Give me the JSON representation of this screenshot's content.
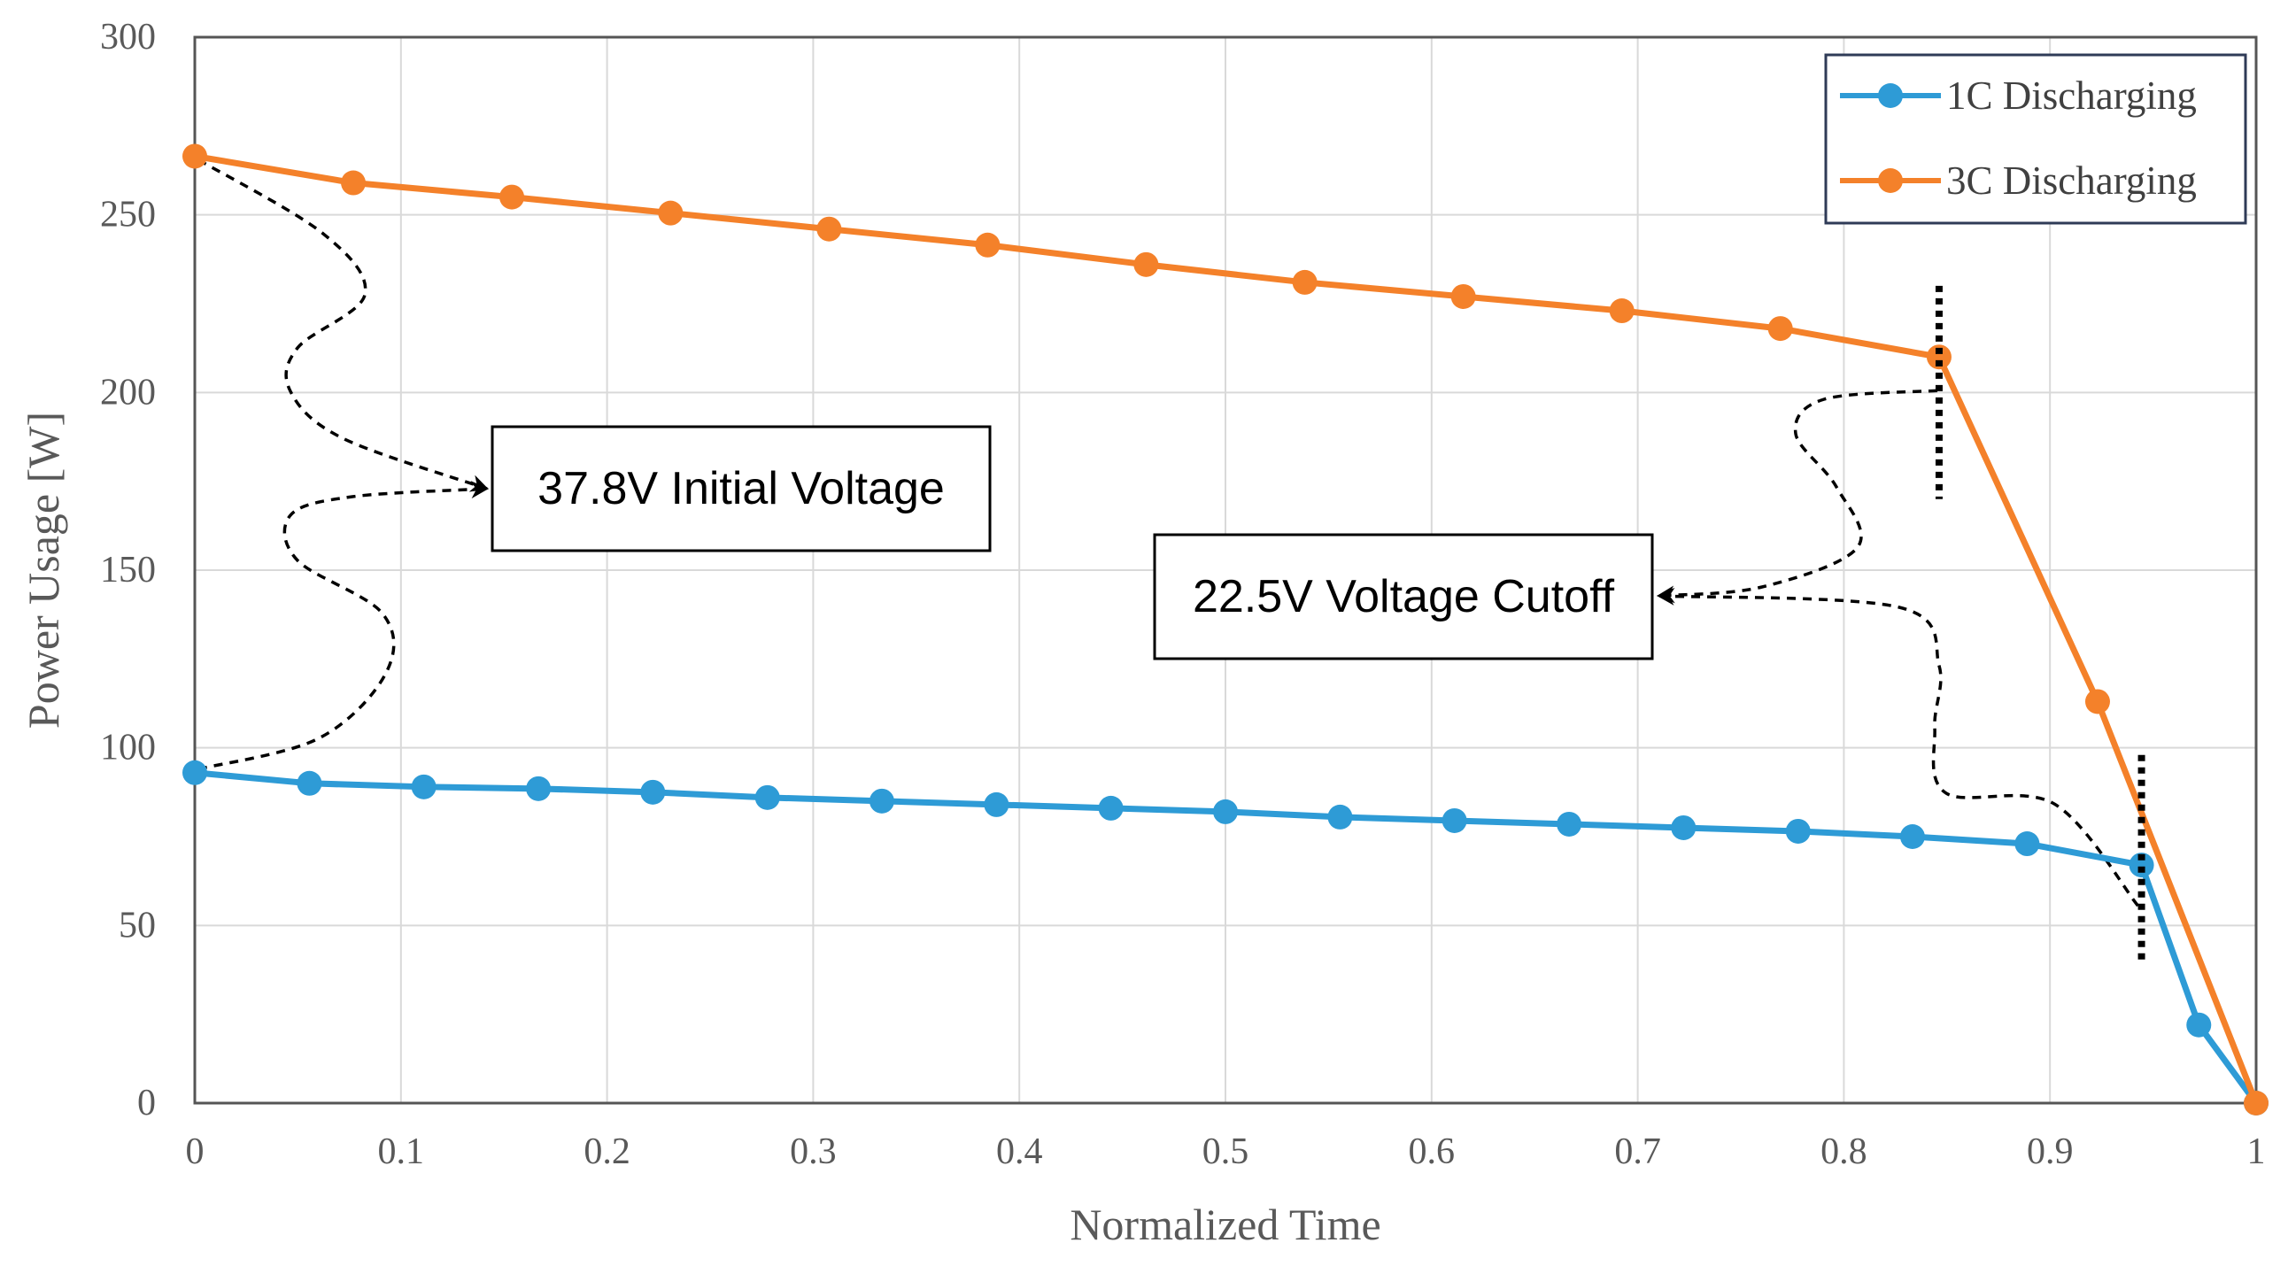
{
  "chart_data": {
    "type": "line",
    "title": "",
    "xlabel": "Normalized Time",
    "ylabel": "Power Usage [W]",
    "xlim": [
      0,
      1
    ],
    "ylim": [
      0,
      300
    ],
    "xticks": [
      0,
      0.1,
      0.2,
      0.3,
      0.4,
      0.5,
      0.6,
      0.7,
      0.8,
      0.9,
      1
    ],
    "xtick_labels": [
      "0",
      "0.1",
      "0.2",
      "0.3",
      "0.4",
      "0.5",
      "0.6",
      "0.7",
      "0.8",
      "0.9",
      "1"
    ],
    "yticks": [
      0,
      50,
      100,
      150,
      200,
      250,
      300
    ],
    "ytick_labels": [
      "0",
      "50",
      "100",
      "150",
      "200",
      "250",
      "300"
    ],
    "grid": true,
    "legend_position": "top-right",
    "series": [
      {
        "name": "1C Discharging",
        "color": "#2E9BD6",
        "x": [
          0,
          0.0556,
          0.1111,
          0.1667,
          0.2222,
          0.2778,
          0.3333,
          0.3889,
          0.4444,
          0.5,
          0.5556,
          0.6111,
          0.6667,
          0.7222,
          0.7778,
          0.8333,
          0.8889,
          0.9444,
          0.9722,
          1
        ],
        "y": [
          93,
          90,
          89,
          88.5,
          87.5,
          86,
          85,
          84,
          83,
          82,
          80.5,
          79.5,
          78.5,
          77.5,
          76.5,
          75,
          73,
          67,
          22,
          0
        ]
      },
      {
        "name": "3C Discharging",
        "color": "#F4812A",
        "x": [
          0,
          0.0769,
          0.1538,
          0.2308,
          0.3077,
          0.3846,
          0.4615,
          0.5385,
          0.6154,
          0.6923,
          0.7692,
          0.8462,
          0.9231,
          1
        ],
        "y": [
          266.5,
          259,
          255,
          250.5,
          246,
          241.5,
          236,
          231,
          227,
          223,
          218,
          210,
          113,
          0
        ]
      }
    ],
    "annotations": [
      {
        "text": "37.8V Initial Voltage",
        "targets": [
          [
            0,
            266.5
          ],
          [
            0,
            93
          ]
        ]
      },
      {
        "text": "22.5V Voltage Cutoff",
        "targets": [
          [
            0.8462,
            210
          ],
          [
            0.9444,
            67
          ]
        ]
      }
    ],
    "cutoff_markers": [
      {
        "x": 0.8462,
        "y_range": [
          170,
          230
        ]
      },
      {
        "x": 0.9444,
        "y_range": [
          40,
          98
        ]
      }
    ]
  }
}
